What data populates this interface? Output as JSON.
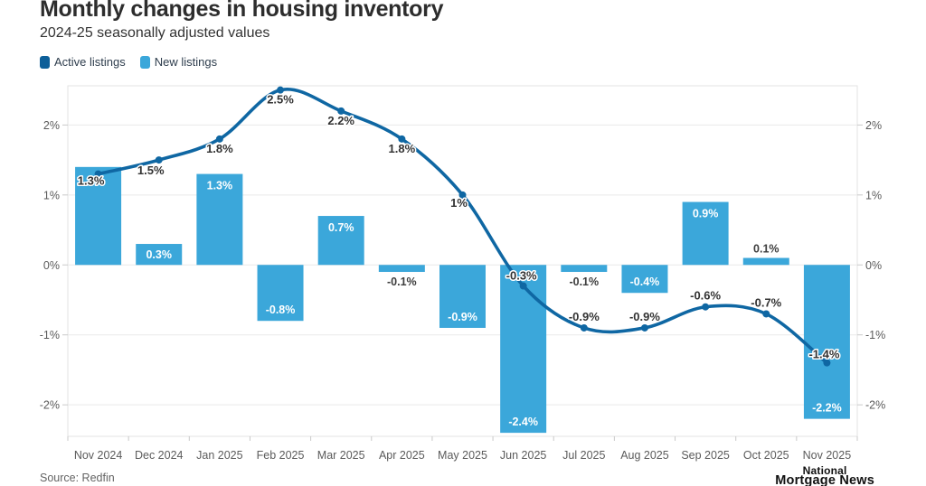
{
  "header": {
    "title": "Monthly changes in housing inventory",
    "subtitle": "2024-25 seasonally adjusted values"
  },
  "legend": {
    "items": [
      {
        "label": "Active listings",
        "color": "#0d5f99"
      },
      {
        "label": "New listings",
        "color": "#3ba7da"
      }
    ]
  },
  "footer": {
    "source": "Source: Redfin",
    "logo_line1": "National",
    "logo_line2": "Mortgage News"
  },
  "chart_data": {
    "type": "bar+line",
    "title": "Monthly changes in housing inventory",
    "subtitle": "2024-25 seasonally adjusted values",
    "categories": [
      "Nov 2024",
      "Dec 2024",
      "Jan 2025",
      "Feb 2025",
      "Mar 2025",
      "Apr 2025",
      "May 2025",
      "Jun 2025",
      "Jul 2025",
      "Aug 2025",
      "Sep 2025",
      "Oct 2025",
      "Nov 2025"
    ],
    "series": [
      {
        "name": "Active listings",
        "type": "line",
        "values": [
          1.3,
          1.5,
          1.8,
          2.5,
          2.2,
          1.8,
          1.0,
          -0.3,
          -0.9,
          -0.9,
          -0.6,
          -0.7,
          -1.4
        ],
        "labels": [
          "1.3%",
          "1.5%",
          "1.8%",
          "2.5%",
          "2.2%",
          "1.8%",
          "1%",
          "-0.3%",
          "-0.9%",
          "-0.9%",
          "-0.6%",
          "-0.7%",
          "-1.4%"
        ]
      },
      {
        "name": "New listings",
        "type": "bar",
        "values": [
          1.4,
          0.3,
          1.3,
          -0.8,
          0.7,
          -0.1,
          -0.9,
          -2.4,
          -0.1,
          -0.4,
          0.9,
          0.1,
          -2.2
        ],
        "labels": [
          "",
          "0.3%",
          "1.3%",
          "-0.8%",
          "0.7%",
          "-0.1%",
          "-0.9%",
          "-2.4%",
          "-0.1%",
          "-0.4%",
          "0.9%",
          "0.1%",
          "-2.2%"
        ]
      }
    ],
    "ylim": [
      -2.45,
      2.56
    ],
    "yticks": [
      {
        "v": 2,
        "label": "2%"
      },
      {
        "v": 1,
        "label": "1%"
      },
      {
        "v": 0,
        "label": "0%"
      },
      {
        "v": -1,
        "label": "-1%"
      },
      {
        "v": -2,
        "label": "-2%"
      }
    ],
    "grid": true,
    "dual_axis": true,
    "legend_position": "top-left",
    "colors": {
      "bar": "#3ba7da",
      "line": "#0f67a3",
      "grid": "#e9e9e9",
      "border": "#e3e3e3",
      "tick": "#c9c9c9"
    }
  }
}
